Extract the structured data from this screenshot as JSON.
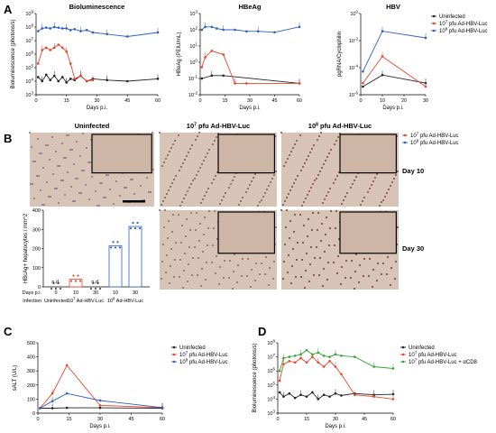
{
  "panels": {
    "A": "A",
    "B": "B",
    "C": "C",
    "D": "D"
  },
  "colors": {
    "uninfected": "#222222",
    "low": "#e8452c",
    "high": "#2d5fc4",
    "acd8": "#36a336",
    "b_low": "#e8452c",
    "b_high": "#2d5fc4"
  },
  "legend_A": {
    "items": [
      "Uninfected",
      "10^7 pfu Ad-HBV-Luc",
      "10^8 pfu Ad-HBV-Luc"
    ]
  },
  "legend_B": {
    "items": [
      "10^7 pfu Ad-HBV-Luc",
      "10^8 pfu Ad-HBV-Luc"
    ]
  },
  "legend_C": {
    "items": [
      "Uninfected",
      "10^7 pfu Ad-HBV-Luc",
      "10^8 pfu Ad-HBV-Luc"
    ]
  },
  "legend_D": {
    "items": [
      "Uninfected",
      "10^7 pfu Ad-HBV-Luc",
      "10^7 pfu Ad-HBV-Luc + αCD8"
    ]
  },
  "micro": {
    "col_titles": [
      "Uninfected",
      "10^7 pfu Ad-HBV-Luc",
      "10^8 pfu Ad-HBV-Luc"
    ],
    "rows": [
      "Day 10",
      "Day 30"
    ]
  },
  "chart_data": [
    {
      "id": "A1",
      "type": "line",
      "title": "Bioluminescence",
      "ylabel": "Bioluminescence (photons/s)",
      "xlabel": "Days p.i.",
      "yscale": "log",
      "ylim": [
        1000,
        1000000000.0
      ],
      "xlim": [
        0,
        60
      ],
      "xticks": [
        "0",
        "15",
        "30",
        "45",
        "60"
      ],
      "yticks": [
        "10^3",
        "10^4",
        "10^5",
        "10^6",
        "10^7",
        "10^8",
        "10^9"
      ],
      "series": [
        {
          "name": "Uninfected",
          "color": "#222222",
          "x": [
            1,
            3,
            5,
            7,
            9,
            11,
            13,
            15,
            17,
            19,
            22,
            25,
            28,
            35,
            45,
            60
          ],
          "y": [
            20000,
            10000,
            30000,
            12000,
            25000,
            10000,
            20000,
            8000,
            15000,
            12000,
            25000,
            10000,
            15000,
            12000,
            10000,
            15000
          ]
        },
        {
          "name": "10^7 pfu Ad-HBV-Luc",
          "color": "#e8452c",
          "x": [
            1,
            3,
            5,
            7,
            9,
            11,
            13,
            15,
            17,
            19,
            22,
            25,
            28
          ],
          "y": [
            200000,
            2000000,
            3000000,
            2000000,
            3000000,
            5000000,
            3000000,
            1500000,
            200000,
            15000,
            25000,
            10000,
            12000
          ],
          "err": [
            0,
            0,
            0,
            0,
            0,
            0,
            0,
            0,
            0,
            0,
            0,
            0,
            0
          ]
        },
        {
          "name": "10^8 pfu Ad-HBV-Luc",
          "color": "#2d5fc4",
          "x": [
            1,
            3,
            5,
            7,
            9,
            11,
            13,
            15,
            17,
            19,
            22,
            25,
            28,
            35,
            45,
            60
          ],
          "y": [
            50000000,
            80000000,
            90000000,
            80000000,
            100000000,
            90000000,
            80000000,
            80000000,
            60000000,
            70000000,
            50000000,
            60000000,
            40000000,
            30000000,
            20000000,
            40000000
          ],
          "err": [
            0,
            0,
            0,
            0,
            0,
            0,
            0,
            0,
            0,
            0,
            0,
            0,
            40000000,
            30000000,
            20000000,
            40000000
          ]
        }
      ]
    },
    {
      "id": "A2",
      "type": "line",
      "title": "HBeAg",
      "ylabel": "HBeAg (PEIU/mL)",
      "xlabel": "Days p.i.",
      "yscale": "log",
      "ylim": [
        0.01,
        1000
      ],
      "xlim": [
        0,
        60
      ],
      "xticks": [
        "0",
        "15",
        "30",
        "45",
        "60"
      ],
      "yticks": [
        "10^-2",
        "10^-1",
        "10^0",
        "10^1",
        "10^2",
        "10^3"
      ],
      "series": [
        {
          "name": "Uninfected",
          "color": "#222222",
          "x": [
            1,
            7,
            14,
            60
          ],
          "y": [
            0.1,
            0.15,
            0.15,
            0.05
          ]
        },
        {
          "name": "10^7 pfu Ad-HBV-Luc",
          "color": "#e8452c",
          "x": [
            1,
            3,
            7,
            14,
            21,
            28,
            60
          ],
          "y": [
            0.5,
            2,
            5,
            3,
            0.05,
            0.05,
            0.05
          ]
        },
        {
          "name": "10^8 pfu Ad-HBV-Luc",
          "color": "#2d5fc4",
          "x": [
            1,
            3,
            7,
            10,
            14,
            21,
            28,
            35,
            45,
            60
          ],
          "y": [
            100,
            150,
            150,
            120,
            100,
            100,
            80,
            80,
            70,
            150
          ]
        }
      ]
    },
    {
      "id": "A3",
      "type": "line",
      "title": "HBV",
      "ylabel": "pgRNA/Cyclophilin",
      "xlabel": "Days p.i.",
      "yscale": "log",
      "ylim": [
        1e-07,
        1
      ],
      "xlim": [
        0,
        30
      ],
      "xticks": [
        "0",
        "10",
        "20",
        "30"
      ],
      "yticks": [
        "10^-6",
        "10^-4",
        "10^-2",
        "10^0"
      ],
      "series": [
        {
          "name": "Uninfected",
          "color": "#222222",
          "x": [
            1,
            10,
            30
          ],
          "y": [
            5e-07,
            5e-06,
            1e-06
          ]
        },
        {
          "name": "10^7 pfu Ad-HBV-Luc",
          "color": "#e8452c",
          "x": [
            1,
            10,
            30
          ],
          "y": [
            1e-06,
            0.0002,
            5e-07
          ]
        },
        {
          "name": "10^8 pfu Ad-HBV-Luc",
          "color": "#2d5fc4",
          "x": [
            1,
            10,
            30
          ],
          "y": [
            1e-05,
            0.03,
            0.008
          ]
        }
      ]
    },
    {
      "id": "B",
      "type": "bar",
      "ylabel": "HBcAg+ hepatocytes / mm^2",
      "ylim": [
        0,
        400
      ],
      "yticks": [
        "0",
        "100",
        "200",
        "300",
        "400"
      ],
      "days_label": "Days p.i.",
      "infection_label": "Infection",
      "categories": [
        "0",
        "10",
        "30",
        "10",
        "30"
      ],
      "groups": [
        "Uninfected",
        "10^7 Ad-HBV-Luc",
        "10^8 Ad-HBV-Luc"
      ],
      "annotations": [
        "n.d.",
        "n.d."
      ],
      "values": [
        0,
        40,
        0,
        215,
        315
      ]
    },
    {
      "id": "C",
      "type": "line",
      "ylabel": "sALT (U/L)",
      "xlabel": "Days p.i.",
      "ylim": [
        0,
        500
      ],
      "xlim": [
        0,
        60
      ],
      "xticks": [
        "0",
        "15",
        "30",
        "45",
        "60"
      ],
      "yticks": [
        "0",
        "100",
        "200",
        "300",
        "400",
        "500"
      ],
      "series": [
        {
          "name": "Uninfected",
          "color": "#222222",
          "x": [
            1,
            7,
            14,
            30,
            60
          ],
          "y": [
            35,
            35,
            38,
            38,
            35
          ]
        },
        {
          "name": "10^7 pfu Ad-HBV-Luc",
          "color": "#e8452c",
          "x": [
            1,
            7,
            14,
            30,
            60
          ],
          "y": [
            35,
            140,
            340,
            55,
            40
          ]
        },
        {
          "name": "10^8 pfu Ad-HBV-Luc",
          "color": "#2d5fc4",
          "x": [
            1,
            7,
            14,
            30,
            60
          ],
          "y": [
            35,
            85,
            140,
            90,
            40
          ]
        }
      ]
    },
    {
      "id": "D",
      "type": "line",
      "ylabel": "Bioluminescence (photons/s)",
      "xlabel": "Days p.i.",
      "yscale": "log",
      "ylim": [
        1000,
        100000000.0
      ],
      "xlim": [
        0,
        60
      ],
      "xticks": [
        "0",
        "15",
        "30",
        "45",
        "60"
      ],
      "yticks": [
        "10^3",
        "10^4",
        "10^5",
        "10^6",
        "10^7",
        "10^8"
      ],
      "series": [
        {
          "name": "Uninfected",
          "color": "#222222",
          "x": [
            1,
            3,
            6,
            9,
            12,
            15,
            18,
            21,
            24,
            27,
            30,
            33,
            40,
            50,
            60
          ],
          "y": [
            30000,
            15000,
            25000,
            12000,
            20000,
            15000,
            30000,
            10000,
            20000,
            15000,
            25000,
            18000,
            25000,
            20000,
            22000
          ]
        },
        {
          "name": "10^7 pfu Ad-HBV-Luc",
          "color": "#e8452c",
          "x": [
            1,
            3,
            6,
            9,
            12,
            15,
            18,
            21,
            24,
            27,
            30,
            33,
            40,
            50,
            60
          ],
          "y": [
            200000,
            3000000,
            5000000,
            4000000,
            8000000,
            4000000,
            10000000,
            4000000,
            2000000,
            5000000,
            2000000,
            600000,
            20000,
            15000,
            10000
          ]
        },
        {
          "name": "10^7 pfu Ad-HBV-Luc + αCD8",
          "color": "#36a336",
          "x": [
            1,
            3,
            6,
            9,
            12,
            15,
            18,
            21,
            24,
            27,
            30,
            33,
            40,
            50,
            60
          ],
          "y": [
            1000000,
            8000000,
            10000000,
            12000000,
            15000000,
            30000000,
            15000000,
            20000000,
            12000000,
            10000000,
            15000000,
            12000000,
            10000000,
            2000000,
            1500000
          ]
        }
      ]
    }
  ]
}
